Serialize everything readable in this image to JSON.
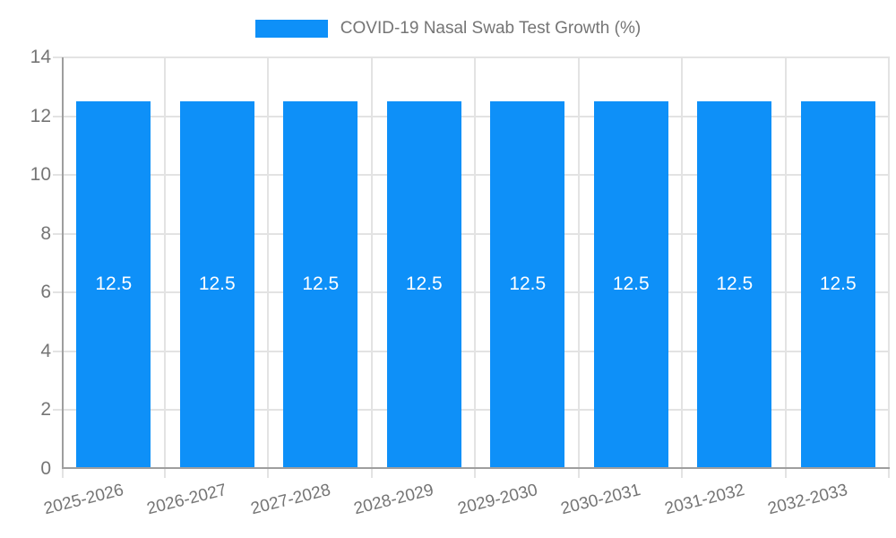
{
  "legend": {
    "position": "top",
    "items": [
      {
        "label": "COVID-19 Nasal Swab Test Growth (%)",
        "swatch_color": "#0e90f8"
      }
    ]
  },
  "chart_data": {
    "type": "bar",
    "title": "COVID-19 Nasal Swab Test Growth (%)",
    "categories": [
      "2025-2026",
      "2026-2027",
      "2027-2028",
      "2028-2029",
      "2029-2030",
      "2030-2031",
      "2031-2032",
      "2032-2033"
    ],
    "series": [
      {
        "name": "COVID-19 Nasal Swab Test Growth (%)",
        "values": [
          12.5,
          12.5,
          12.5,
          12.5,
          12.5,
          12.5,
          12.5,
          12.5
        ],
        "bar_labels": [
          "12.5",
          "12.5",
          "12.5",
          "12.5",
          "12.5",
          "12.5",
          "12.5",
          "12.5"
        ]
      }
    ],
    "xlabel": "",
    "ylabel": "",
    "ylim": [
      0,
      14
    ],
    "yticks": [
      0,
      2,
      4,
      6,
      8,
      10,
      12,
      14
    ],
    "grid": "on",
    "legend_position": "top",
    "colors": {
      "bar": "#0e90f8",
      "bar_label_text": "#ffffff",
      "grid": "#e3e3e3",
      "axis": "#9e9e9e",
      "tick_text": "#757575",
      "title_text": "#757575",
      "background": "#ffffff"
    }
  }
}
